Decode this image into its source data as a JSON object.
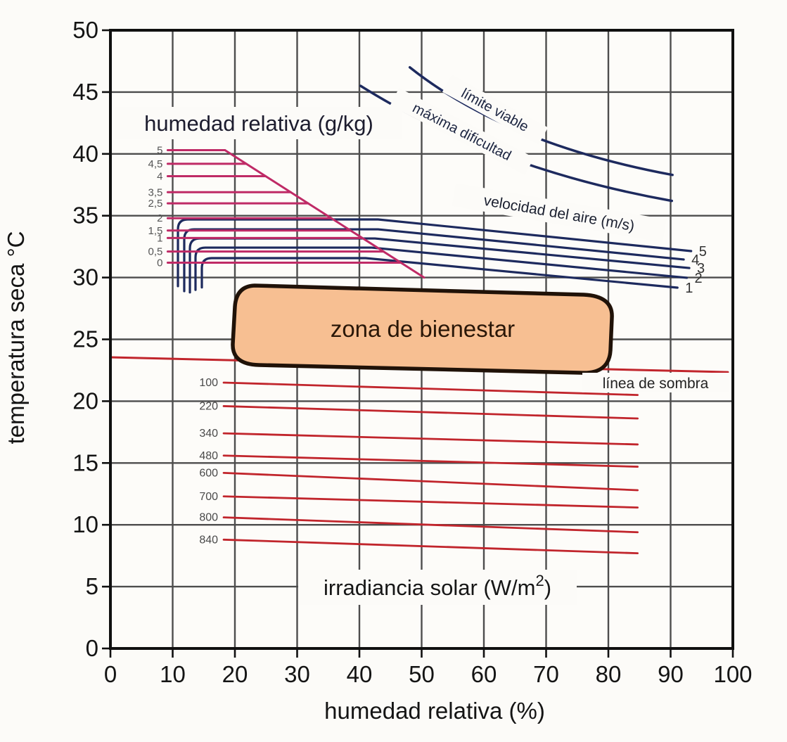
{
  "chart_data": {
    "type": "line",
    "axes": {
      "xlabel": "humedad relativa (%)",
      "ylabel": "temperatura seca °C",
      "xlim": [
        0,
        100
      ],
      "ylim": [
        0,
        50
      ],
      "x_ticks": [
        0,
        10,
        20,
        30,
        40,
        50,
        60,
        70,
        80,
        90,
        100
      ],
      "y_ticks": [
        0,
        5,
        10,
        15,
        20,
        25,
        30,
        35,
        40,
        45,
        50
      ],
      "grid": true
    },
    "colors": {
      "magenta": "#bf2a66",
      "navy": "#1d2a5e",
      "red": "#c1252c",
      "grid": "#4d4d4d",
      "border": "#101010",
      "zone_fill": "#f7bf92",
      "zone_stroke": "#201208",
      "muted_label": "#555555"
    },
    "humidity_lines": {
      "title": "humedad relativa (g/kg)",
      "start_rh": 9.2,
      "items": [
        {
          "label": "5",
          "t": 40.3
        },
        {
          "label": "4,5",
          "t": 39.2
        },
        {
          "label": "4",
          "t": 38.2
        },
        {
          "label": "3,5",
          "t": 36.9
        },
        {
          "label": "2,5",
          "t": 36.0
        },
        {
          "label": "2",
          "t": 34.8
        },
        {
          "label": "1,5",
          "t": 33.8
        },
        {
          "label": "1",
          "t": 33.2
        },
        {
          "label": "0,5",
          "t": 32.1
        },
        {
          "label": "0",
          "t": 31.2
        }
      ]
    },
    "saturation_line": {
      "from": {
        "rh": 18.4,
        "t": 40.3
      },
      "to": {
        "rh": 50.4,
        "t": 30.0
      }
    },
    "air_velocity": {
      "title": "velocidad del aire (m/s)",
      "items": [
        {
          "label": "5",
          "vert_rh": 10.85,
          "t_bottom": 29.3,
          "t_plateau": 34.7,
          "plateau_to_rh": 43.0,
          "end_rh": 93.3,
          "end_t": 32.14
        },
        {
          "label": "4",
          "vert_rh": 11.86,
          "t_bottom": 28.9,
          "t_plateau": 33.9,
          "plateau_to_rh": 43.0,
          "end_rh": 92.1,
          "end_t": 31.46
        },
        {
          "label": "3",
          "vert_rh": 12.77,
          "t_bottom": 28.8,
          "t_plateau": 33.16,
          "plateau_to_rh": 42.5,
          "end_rh": 93.0,
          "end_t": 30.77
        },
        {
          "label": "2",
          "vert_rh": 13.67,
          "t_bottom": 29.0,
          "t_plateau": 32.42,
          "plateau_to_rh": 42.0,
          "end_rh": 92.6,
          "end_t": 29.98
        },
        {
          "label": "1",
          "vert_rh": 14.69,
          "t_bottom": 29.2,
          "t_plateau": 31.57,
          "plateau_to_rh": 41.0,
          "end_rh": 91.1,
          "end_t": 29.18
        }
      ]
    },
    "viability_curves": [
      {
        "label": "límite viable",
        "p0": {
          "rh": 48.1,
          "t": 47.0
        },
        "c": {
          "rh": 63.6,
          "t": 40.8
        },
        "p1": {
          "rh": 90.3,
          "t": 38.3
        }
      },
      {
        "label": "máxima dificultad",
        "p0": {
          "rh": 40.2,
          "t": 45.5
        },
        "c": {
          "rh": 61.4,
          "t": 38.8
        },
        "p1": {
          "rh": 90.2,
          "t": 36.2
        }
      }
    ],
    "comfort_zone": {
      "label": "zona de bienestar"
    },
    "shade_line": {
      "label": "línea de sombra",
      "from": {
        "rh": 0,
        "t": 23.55
      },
      "to": {
        "rh": 99.2,
        "t": 22.35
      }
    },
    "irradiance": {
      "title_parts": [
        "irradiancia solar (W/m",
        "2",
        ")"
      ],
      "start_rh": 18.2,
      "end_rh": 84.7,
      "items": [
        {
          "label": "100",
          "t_start": 21.5,
          "t_end": 20.5
        },
        {
          "label": "220",
          "t_start": 19.6,
          "t_end": 18.6
        },
        {
          "label": "340",
          "t_start": 17.4,
          "t_end": 16.5
        },
        {
          "label": "480",
          "t_start": 15.6,
          "t_end": 14.7
        },
        {
          "label": "600",
          "t_start": 14.2,
          "t_end": 12.8
        },
        {
          "label": "700",
          "t_start": 12.3,
          "t_end": 11.4
        },
        {
          "label": "800",
          "t_start": 10.6,
          "t_end": 9.4
        },
        {
          "label": "840",
          "t_start": 8.8,
          "t_end": 7.7
        }
      ]
    }
  }
}
